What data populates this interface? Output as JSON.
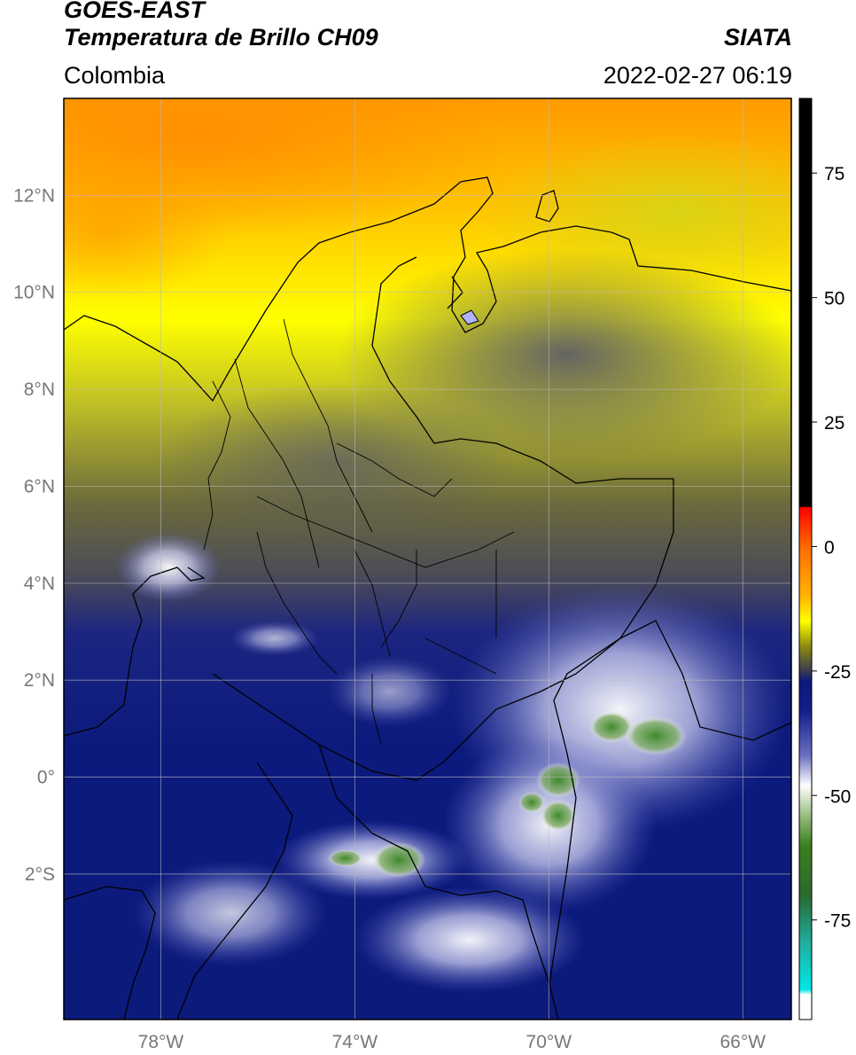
{
  "header": {
    "satellite": "GOES-EAST",
    "product": "Temperatura de Brillo CH09",
    "region": "Colombia",
    "organization": "SIATA",
    "timestamp": "2022-02-27 06:19"
  },
  "map": {
    "lon_range": [
      -80,
      -65
    ],
    "lat_range": [
      -5,
      14
    ],
    "lat_ticks": [
      {
        "value": 12,
        "label": "12°N"
      },
      {
        "value": 10,
        "label": "10°N"
      },
      {
        "value": 8,
        "label": "8°N"
      },
      {
        "value": 6,
        "label": "6°N"
      },
      {
        "value": 4,
        "label": "4°N"
      },
      {
        "value": 2,
        "label": "2°N"
      },
      {
        "value": 0,
        "label": "0°"
      },
      {
        "value": -2,
        "label": "2°S"
      }
    ],
    "lon_ticks": [
      {
        "value": -78,
        "label": "78°W"
      },
      {
        "value": -74,
        "label": "74°W"
      },
      {
        "value": -70,
        "label": "70°W"
      },
      {
        "value": -66,
        "label": "66°W"
      }
    ],
    "grid": true
  },
  "colorbar": {
    "range": [
      -95,
      90
    ],
    "ticks": [
      {
        "value": 75,
        "label": "75"
      },
      {
        "value": 50,
        "label": "50"
      },
      {
        "value": 25,
        "label": "25"
      },
      {
        "value": 0,
        "label": "0"
      },
      {
        "value": -25,
        "label": "-25"
      },
      {
        "value": -50,
        "label": "-50"
      },
      {
        "value": -75,
        "label": "-75"
      }
    ],
    "stops": [
      {
        "value": 90,
        "color": "#000000"
      },
      {
        "value": 8,
        "color": "#000000"
      },
      {
        "value": 7.9,
        "color": "#ff0000"
      },
      {
        "value": 0,
        "color": "#ff6a00"
      },
      {
        "value": -10,
        "color": "#ffb400"
      },
      {
        "value": -15,
        "color": "#ffff00"
      },
      {
        "value": -20,
        "color": "#8c8c10"
      },
      {
        "value": -25,
        "color": "#3a3a50"
      },
      {
        "value": -27,
        "color": "#0a1a7a"
      },
      {
        "value": -33,
        "color": "#141e8c"
      },
      {
        "value": -42,
        "color": "#6a70c0"
      },
      {
        "value": -48,
        "color": "#ffffff"
      },
      {
        "value": -55,
        "color": "#8ab070"
      },
      {
        "value": -60,
        "color": "#3a8020"
      },
      {
        "value": -70,
        "color": "#2a6a30"
      },
      {
        "value": -80,
        "color": "#20b0a0"
      },
      {
        "value": -89,
        "color": "#00e8e8"
      },
      {
        "value": -90,
        "color": "#ffffff"
      },
      {
        "value": -95,
        "color": "#ffffff"
      }
    ]
  }
}
